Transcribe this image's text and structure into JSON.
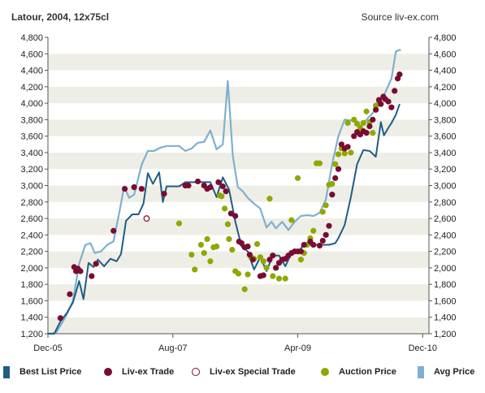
{
  "header": {
    "title": "Latour, 2004, 12x75cl",
    "source": "Source liv-ex.com"
  },
  "legend": [
    {
      "label": "Best List Price",
      "key": "best_list",
      "kind": "line",
      "color": "#1f5d86"
    },
    {
      "label": "Liv-ex Trade",
      "key": "trade",
      "kind": "dot",
      "color": "#7a0b33"
    },
    {
      "label": "Liv-ex Special Trade",
      "key": "special",
      "kind": "ring",
      "color": "#7a0b33"
    },
    {
      "label": "Auction Price",
      "key": "auction",
      "kind": "dot",
      "color": "#8fa800"
    },
    {
      "label": "Avg Price",
      "key": "avg",
      "kind": "line",
      "color": "#7fb0cf"
    }
  ],
  "chart_data": {
    "type": "line",
    "x_unit": "months since Dec-05",
    "xlim": [
      0,
      61
    ],
    "ylim": [
      1200,
      4800
    ],
    "y_ticks": [
      1200,
      1400,
      1600,
      1800,
      2000,
      2200,
      2400,
      2600,
      2800,
      3000,
      3200,
      3400,
      3600,
      3800,
      4000,
      4200,
      4400,
      4600,
      4800
    ],
    "y_tick_labels": [
      "1,200",
      "1,400",
      "1,600",
      "1,800",
      "2,000",
      "2,200",
      "2,400",
      "2,600",
      "2,800",
      "3,000",
      "3,200",
      "3,400",
      "3,600",
      "3,800",
      "4,000",
      "4,200",
      "4,400",
      "4,600",
      "4,800"
    ],
    "x_ticks": [
      0,
      20,
      40,
      60
    ],
    "x_tick_labels": [
      "Dec-05",
      "Aug-07",
      "Apr-09",
      "Dec-10"
    ],
    "grid": "horizontal bands",
    "series": [
      {
        "name": "Avg Price",
        "style": "line",
        "color": "#7fb0cf",
        "points": [
          [
            0.3,
            1200
          ],
          [
            1.3,
            1210
          ],
          [
            2,
            1300
          ],
          [
            3,
            1430
          ],
          [
            4,
            1600
          ],
          [
            5,
            2050
          ],
          [
            6,
            2280
          ],
          [
            6.8,
            2300
          ],
          [
            7.5,
            2180
          ],
          [
            8.5,
            2200
          ],
          [
            9.5,
            2280
          ],
          [
            10.5,
            2320
          ],
          [
            11.5,
            2700
          ],
          [
            12.2,
            2990
          ],
          [
            13,
            2850
          ],
          [
            13.8,
            2890
          ],
          [
            15,
            3250
          ],
          [
            16,
            3420
          ],
          [
            17,
            3420
          ],
          [
            18,
            3460
          ],
          [
            19,
            3480
          ],
          [
            20,
            3480
          ],
          [
            21,
            3480
          ],
          [
            22,
            3420
          ],
          [
            23,
            3450
          ],
          [
            24,
            3520
          ],
          [
            25,
            3530
          ],
          [
            26,
            3670
          ],
          [
            27,
            3440
          ],
          [
            28,
            3500
          ],
          [
            28.8,
            4270
          ],
          [
            29.6,
            3360
          ],
          [
            30.4,
            2980
          ],
          [
            31.2,
            2930
          ],
          [
            32,
            2850
          ],
          [
            33,
            2780
          ],
          [
            34,
            2720
          ],
          [
            35,
            2490
          ],
          [
            35.8,
            2560
          ],
          [
            36.5,
            2480
          ],
          [
            37.5,
            2560
          ],
          [
            38.5,
            2460
          ],
          [
            39.5,
            2560
          ],
          [
            40.5,
            2630
          ],
          [
            41.5,
            2640
          ],
          [
            42.5,
            2630
          ],
          [
            43.5,
            2670
          ],
          [
            44.5,
            2830
          ],
          [
            45.5,
            3260
          ],
          [
            46.5,
            3600
          ],
          [
            47.5,
            3800
          ],
          [
            48.5,
            3790
          ],
          [
            49.5,
            3780
          ],
          [
            50,
            3720
          ],
          [
            51,
            3800
          ],
          [
            52,
            3880
          ],
          [
            53,
            3980
          ],
          [
            54,
            4130
          ],
          [
            55,
            4300
          ],
          [
            55.7,
            4630
          ],
          [
            56.5,
            4650
          ]
        ]
      },
      {
        "name": "Best List Price",
        "style": "line",
        "color": "#1f5d86",
        "points": [
          [
            0,
            1200
          ],
          [
            1,
            1200
          ],
          [
            2,
            1350
          ],
          [
            3,
            1450
          ],
          [
            4,
            1580
          ],
          [
            5,
            1840
          ],
          [
            5.7,
            1620
          ],
          [
            6.5,
            2060
          ],
          [
            7.3,
            2010
          ],
          [
            8,
            2100
          ],
          [
            9,
            2020
          ],
          [
            10,
            2110
          ],
          [
            11,
            2080
          ],
          [
            11.7,
            2170
          ],
          [
            12.5,
            2570
          ],
          [
            13.5,
            2650
          ],
          [
            14.5,
            2650
          ],
          [
            15.3,
            2780
          ],
          [
            16,
            3150
          ],
          [
            16.8,
            3020
          ],
          [
            17.8,
            3160
          ],
          [
            18.4,
            2800
          ],
          [
            19,
            2990
          ],
          [
            20,
            2990
          ],
          [
            21,
            2990
          ],
          [
            22,
            3040
          ],
          [
            23,
            3040
          ],
          [
            24,
            3040
          ],
          [
            25,
            3040
          ],
          [
            26,
            3040
          ],
          [
            27,
            2860
          ],
          [
            28,
            3100
          ],
          [
            29,
            2950
          ],
          [
            30,
            2560
          ],
          [
            31,
            2260
          ],
          [
            32,
            2200
          ],
          [
            33,
            1980
          ],
          [
            34,
            2130
          ],
          [
            35,
            1960
          ],
          [
            36,
            2150
          ],
          [
            37,
            2150
          ],
          [
            38,
            2020
          ],
          [
            39,
            2180
          ],
          [
            40,
            2180
          ],
          [
            41,
            2290
          ],
          [
            42,
            2280
          ],
          [
            43,
            2280
          ],
          [
            44,
            2280
          ],
          [
            45,
            2280
          ],
          [
            46,
            2300
          ],
          [
            46.5,
            2360
          ],
          [
            47.5,
            2520
          ],
          [
            48.5,
            2860
          ],
          [
            49.5,
            3260
          ],
          [
            50.5,
            3430
          ],
          [
            51.5,
            3420
          ],
          [
            52.5,
            3350
          ],
          [
            53.3,
            3770
          ],
          [
            53.8,
            3610
          ],
          [
            54.5,
            3700
          ],
          [
            55,
            3760
          ],
          [
            55.7,
            3860
          ],
          [
            56.3,
            3990
          ]
        ]
      },
      {
        "name": "Liv-ex Trade",
        "style": "dot",
        "color": "#7a0b33",
        "points": [
          [
            2,
            1390
          ],
          [
            3.5,
            1680
          ],
          [
            4.2,
            2010
          ],
          [
            4.5,
            1960
          ],
          [
            4.8,
            1990
          ],
          [
            5.2,
            1960
          ],
          [
            7,
            1900
          ],
          [
            7.7,
            2050
          ],
          [
            10.5,
            2450
          ],
          [
            12.3,
            2960
          ],
          [
            13.8,
            2980
          ],
          [
            15,
            2960
          ],
          [
            18.6,
            2900
          ],
          [
            22,
            3000
          ],
          [
            22.5,
            3000
          ],
          [
            24,
            3050
          ],
          [
            25,
            3000
          ],
          [
            25.5,
            2960
          ],
          [
            26,
            2980
          ],
          [
            27.3,
            3040
          ],
          [
            28,
            2990
          ],
          [
            28.5,
            2930
          ],
          [
            29.3,
            2660
          ],
          [
            30,
            2630
          ],
          [
            30.6,
            2320
          ],
          [
            31,
            2300
          ],
          [
            31.5,
            2250
          ],
          [
            32,
            2260
          ],
          [
            32.3,
            2160
          ],
          [
            32.8,
            2100
          ],
          [
            34,
            1900
          ],
          [
            34.5,
            1910
          ],
          [
            35.5,
            2100
          ],
          [
            36,
            2150
          ],
          [
            36.5,
            2000
          ],
          [
            37,
            2060
          ],
          [
            37.5,
            2100
          ],
          [
            38,
            2110
          ],
          [
            38.5,
            2150
          ],
          [
            39,
            2180
          ],
          [
            39.5,
            2200
          ],
          [
            40,
            2200
          ],
          [
            40.5,
            2200
          ],
          [
            41,
            2280
          ],
          [
            42,
            2320
          ],
          [
            42.5,
            2280
          ],
          [
            43.5,
            2270
          ],
          [
            44,
            2330
          ],
          [
            44.5,
            2400
          ],
          [
            45,
            2510
          ],
          [
            45.5,
            2890
          ],
          [
            46,
            3090
          ],
          [
            46.5,
            3200
          ],
          [
            47,
            3500
          ],
          [
            47.5,
            3450
          ],
          [
            48,
            3470
          ],
          [
            49,
            3600
          ],
          [
            49.5,
            3650
          ],
          [
            50,
            3620
          ],
          [
            50.5,
            3660
          ],
          [
            51,
            3640
          ],
          [
            51.5,
            3720
          ],
          [
            52,
            3800
          ],
          [
            52.5,
            3920
          ],
          [
            53,
            4040
          ],
          [
            53.3,
            3990
          ],
          [
            53.7,
            4080
          ],
          [
            54,
            4050
          ],
          [
            54.5,
            4020
          ],
          [
            55,
            3950
          ],
          [
            55.5,
            4150
          ],
          [
            56,
            4300
          ],
          [
            56.3,
            4350
          ]
        ]
      },
      {
        "name": "Liv-ex Special Trade",
        "style": "ring",
        "color": "#7a0b33",
        "points": [
          [
            15.8,
            2600
          ]
        ]
      },
      {
        "name": "Auction Price",
        "style": "dot",
        "color": "#8fa800",
        "points": [
          [
            21,
            2540
          ],
          [
            23,
            2160
          ],
          [
            23.5,
            1980
          ],
          [
            24.5,
            2280
          ],
          [
            25,
            2180
          ],
          [
            25.5,
            2350
          ],
          [
            26,
            2080
          ],
          [
            26.5,
            2250
          ],
          [
            27,
            2260
          ],
          [
            27.5,
            2880
          ],
          [
            27.8,
            2870
          ],
          [
            28.3,
            2720
          ],
          [
            28.8,
            2530
          ],
          [
            29,
            2350
          ],
          [
            29.5,
            2220
          ],
          [
            30,
            1960
          ],
          [
            30.5,
            1930
          ],
          [
            31.5,
            1740
          ],
          [
            32,
            1920
          ],
          [
            32.5,
            2130
          ],
          [
            33,
            2110
          ],
          [
            33.5,
            2290
          ],
          [
            34,
            2130
          ],
          [
            34.5,
            2080
          ],
          [
            35,
            2000
          ],
          [
            35.5,
            2840
          ],
          [
            36,
            1900
          ],
          [
            36.5,
            2000
          ],
          [
            37,
            1870
          ],
          [
            38,
            1870
          ],
          [
            39,
            2580
          ],
          [
            40,
            3090
          ],
          [
            40.5,
            2100
          ],
          [
            41,
            2180
          ],
          [
            41.5,
            2280
          ],
          [
            42,
            2360
          ],
          [
            42.5,
            2450
          ],
          [
            43,
            3270
          ],
          [
            43.5,
            3270
          ],
          [
            44,
            2680
          ],
          [
            44.5,
            2760
          ],
          [
            45,
            3010
          ],
          [
            45.5,
            3020
          ],
          [
            46,
            3260
          ],
          [
            46.5,
            3380
          ],
          [
            47,
            3450
          ],
          [
            47.5,
            3390
          ],
          [
            48,
            3760
          ],
          [
            48.5,
            3400
          ],
          [
            49,
            3800
          ],
          [
            49.5,
            3750
          ],
          [
            50,
            3700
          ],
          [
            50.5,
            3760
          ],
          [
            51,
            3900
          ],
          [
            51.5,
            3770
          ],
          [
            52,
            3640
          ],
          [
            52.5,
            3970
          ],
          [
            53,
            4000
          ]
        ]
      }
    ]
  }
}
